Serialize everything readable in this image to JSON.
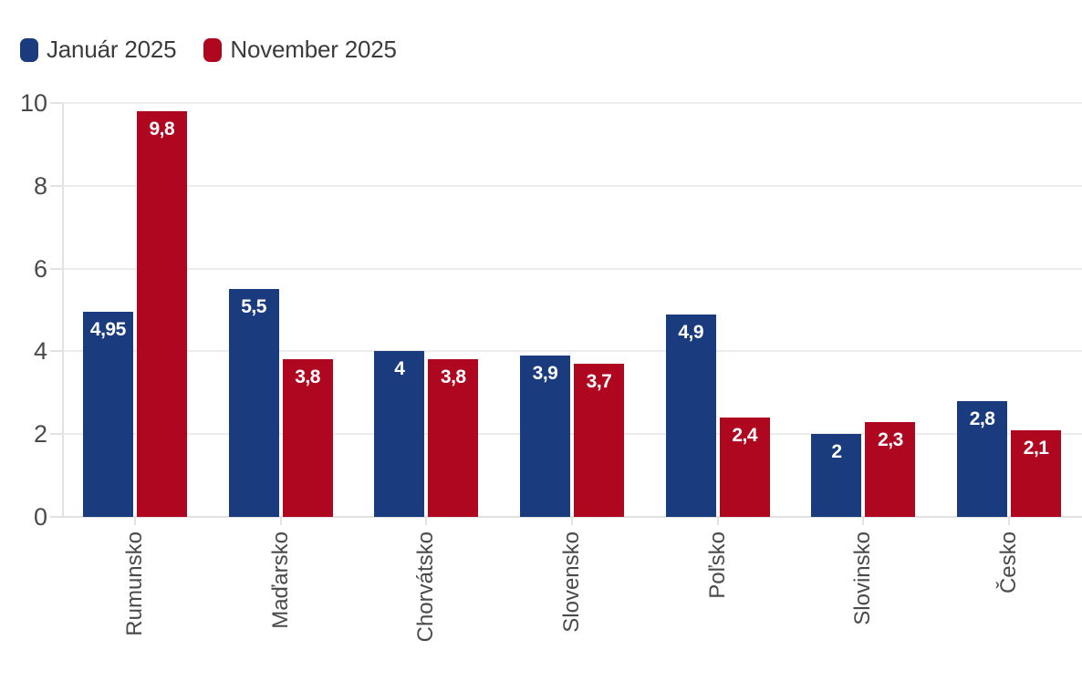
{
  "legend": {
    "items": [
      {
        "label": "Január 2025",
        "color": "#1A3B7D"
      },
      {
        "label": "November 2025",
        "color": "#B00721"
      }
    ]
  },
  "chart_data": {
    "type": "bar",
    "title": "",
    "xlabel": "",
    "ylabel": "",
    "categories": [
      "Rumunsko",
      "Maďarsko",
      "Chorvátsko",
      "Slovensko",
      "Poľsko",
      "Slovinsko",
      "Česko"
    ],
    "series": [
      {
        "name": "Január 2025",
        "color": "#1A3B7D",
        "values": [
          4.95,
          5.5,
          4,
          3.9,
          4.9,
          2,
          2.8
        ],
        "value_labels": [
          "4,95",
          "5,5",
          "4",
          "3,9",
          "4,9",
          "2",
          "2,8"
        ]
      },
      {
        "name": "November 2025",
        "color": "#B00721",
        "values": [
          9.8,
          3.8,
          3.8,
          3.7,
          2.4,
          2.3,
          2.1
        ],
        "value_labels": [
          "9,8",
          "3,8",
          "3,8",
          "3,7",
          "2,4",
          "2,3",
          "2,1"
        ]
      }
    ],
    "ylim": [
      0,
      10
    ],
    "yticks": [
      0,
      2,
      4,
      6,
      8,
      10
    ],
    "ytick_labels": [
      "0",
      "2",
      "4",
      "6",
      "8",
      "10"
    ],
    "grid": true,
    "legend_position": "top-left",
    "value_label_position": "inside-top",
    "value_label_color": "#ffffff",
    "decimal_separator": ",",
    "x_label_rotation": -90
  },
  "colors": {
    "background": "#ffffff",
    "gridline": "#ececec",
    "axis": "#e2e2e2",
    "axis_text": "#4a4a4a",
    "legend_text": "#3b3b3b"
  }
}
